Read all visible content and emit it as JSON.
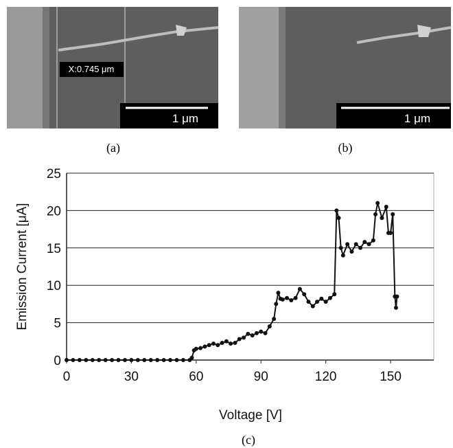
{
  "figure": {
    "panels": [
      {
        "label": "(a)",
        "measurement": "X:0.745 μm",
        "scale_bar": "1 μm"
      },
      {
        "label": "(b)",
        "scale_bar": "1 μm"
      },
      {
        "label": "(c)"
      }
    ]
  },
  "chart_data": {
    "type": "line",
    "x_label": "Voltage [V]",
    "y_label": "Emission Current [μA]",
    "x": [
      0,
      3,
      6,
      9,
      12,
      15,
      18,
      21,
      24,
      27,
      30,
      33,
      36,
      39,
      42,
      45,
      48,
      51,
      54,
      57,
      58,
      59,
      60,
      62,
      64,
      66,
      68,
      70,
      72,
      74,
      76,
      78,
      80,
      82,
      84,
      86,
      88,
      90,
      92,
      94,
      96,
      97,
      98,
      99,
      100,
      102,
      104,
      106,
      108,
      110,
      112,
      114,
      116,
      118,
      120,
      122,
      124,
      125,
      126,
      127,
      128,
      130,
      132,
      134,
      136,
      138,
      140,
      142,
      143,
      144,
      146,
      148,
      149,
      150,
      151,
      152,
      152.5,
      153
    ],
    "values": [
      0,
      0,
      0,
      0,
      0,
      0,
      0,
      0,
      0,
      0,
      0,
      0,
      0,
      0,
      0,
      0,
      0,
      0,
      0,
      0,
      0.3,
      1.3,
      1.5,
      1.6,
      1.8,
      2.0,
      2.2,
      2.0,
      2.3,
      2.5,
      2.2,
      2.3,
      2.8,
      3.0,
      3.5,
      3.3,
      3.6,
      3.8,
      3.6,
      4.5,
      5.5,
      7.5,
      9.0,
      8.2,
      8.1,
      8.3,
      8.0,
      8.3,
      9.5,
      8.8,
      7.8,
      7.2,
      7.8,
      8.2,
      7.8,
      8.3,
      8.8,
      20,
      19,
      15,
      14,
      15.5,
      14.5,
      15.5,
      15,
      15.8,
      15.5,
      16.0,
      19.5,
      21,
      19,
      20.5,
      17,
      17,
      19.5,
      8.5,
      7,
      8.5
    ],
    "color": "#111111",
    "markers": true,
    "xlim": [
      0,
      170
    ],
    "xticks": [
      0,
      30,
      60,
      90,
      120,
      150
    ],
    "ylim": [
      0,
      25
    ],
    "yticks": [
      0,
      5,
      10,
      15,
      20,
      25
    ],
    "grid": true
  }
}
